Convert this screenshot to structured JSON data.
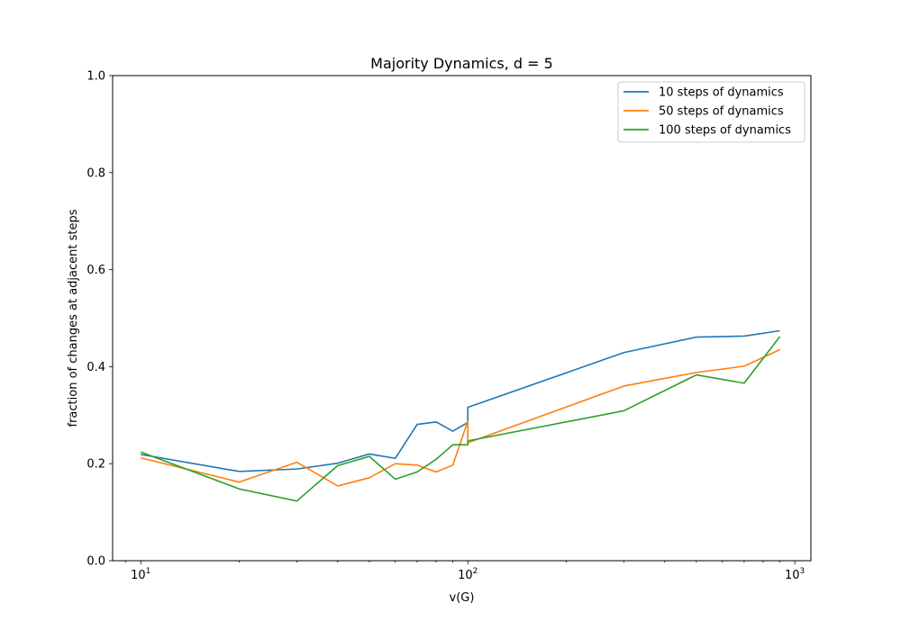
{
  "chart_data": {
    "type": "line",
    "title": "Majority Dynamics, d = 5",
    "xlabel": "v(G)",
    "ylabel": "fraction of changes at adjacent steps",
    "xscale": "log",
    "xlim": [
      8.2,
      1120
    ],
    "ylim": [
      0,
      1
    ],
    "x_ticks": [
      {
        "value": 10,
        "base": "10",
        "exp": "1"
      },
      {
        "value": 100,
        "base": "10",
        "exp": "2"
      },
      {
        "value": 1000,
        "base": "10",
        "exp": "3"
      }
    ],
    "y_ticks": [
      {
        "value": 0.0,
        "label": "0.0"
      },
      {
        "value": 0.2,
        "label": "0.2"
      },
      {
        "value": 0.4,
        "label": "0.4"
      },
      {
        "value": 0.6,
        "label": "0.6"
      },
      {
        "value": 0.8,
        "label": "0.8"
      },
      {
        "value": 1.0,
        "label": "1.0"
      }
    ],
    "grid": false,
    "legend_position": "top-right",
    "series": [
      {
        "name": "10 steps of dynamics",
        "color": "#1f77b4",
        "x": [
          10,
          20,
          30,
          40,
          50,
          60,
          70,
          80,
          90,
          100,
          100,
          300,
          500,
          700,
          900
        ],
        "y": [
          0.219,
          0.184,
          0.189,
          0.201,
          0.22,
          0.211,
          0.281,
          0.286,
          0.267,
          0.285,
          0.316,
          0.429,
          0.461,
          0.463,
          0.474
        ]
      },
      {
        "name": "50 steps of dynamics",
        "color": "#ff7f0e",
        "x": [
          10,
          20,
          30,
          40,
          50,
          60,
          70,
          80,
          90,
          100,
          100,
          300,
          500,
          700,
          900
        ],
        "y": [
          0.212,
          0.162,
          0.203,
          0.154,
          0.171,
          0.2,
          0.197,
          0.183,
          0.197,
          0.288,
          0.243,
          0.36,
          0.388,
          0.401,
          0.435
        ]
      },
      {
        "name": "100 steps of dynamics",
        "color": "#2ca02c",
        "x": [
          10,
          20,
          30,
          40,
          50,
          60,
          70,
          80,
          90,
          100,
          100,
          300,
          500,
          700,
          900
        ],
        "y": [
          0.224,
          0.148,
          0.123,
          0.196,
          0.215,
          0.168,
          0.183,
          0.209,
          0.239,
          0.239,
          0.247,
          0.309,
          0.383,
          0.366,
          0.462
        ]
      }
    ]
  }
}
